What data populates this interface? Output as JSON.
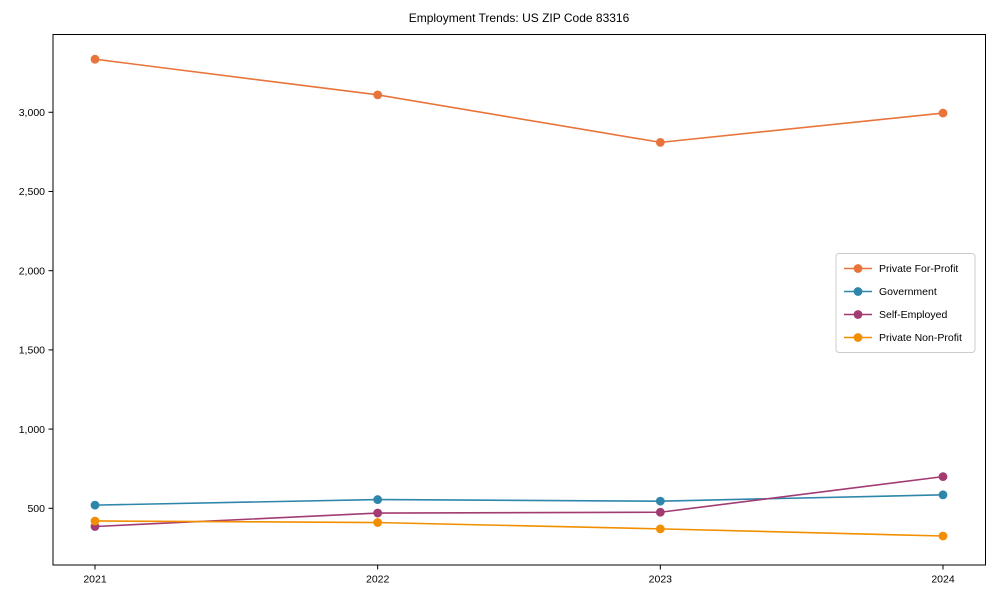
{
  "chart_data": {
    "type": "line",
    "title": "Employment Trends: US ZIP Code 83316",
    "xlabel": "",
    "ylabel": "",
    "x": [
      2021,
      2022,
      2023,
      2024
    ],
    "series": [
      {
        "name": "Private For-Profit",
        "color": "#E8743B",
        "values": [
          3335,
          3110,
          2810,
          2995
        ]
      },
      {
        "name": "Government",
        "color": "#2E86AB",
        "values": [
          520,
          555,
          545,
          585
        ]
      },
      {
        "name": "Self-Employed",
        "color": "#A23B72",
        "values": [
          385,
          470,
          475,
          700
        ]
      },
      {
        "name": "Private Non-Profit",
        "color": "#F18F01",
        "values": [
          420,
          410,
          370,
          325
        ]
      }
    ],
    "xticks": [
      "2021",
      "2022",
      "2023",
      "2024"
    ],
    "yticks": [
      500,
      1000,
      1500,
      2000,
      2500,
      3000
    ],
    "ytick_labels": [
      "500",
      "1,000",
      "1,500",
      "2,000",
      "2,500",
      "3,000"
    ],
    "ylim": [
      142,
      3491
    ],
    "grid": false,
    "marker": "circle",
    "legend_position": "center-right",
    "axis_color": "#000000",
    "legend_border_color": "#cccccc",
    "background_color": "#ffffff"
  }
}
